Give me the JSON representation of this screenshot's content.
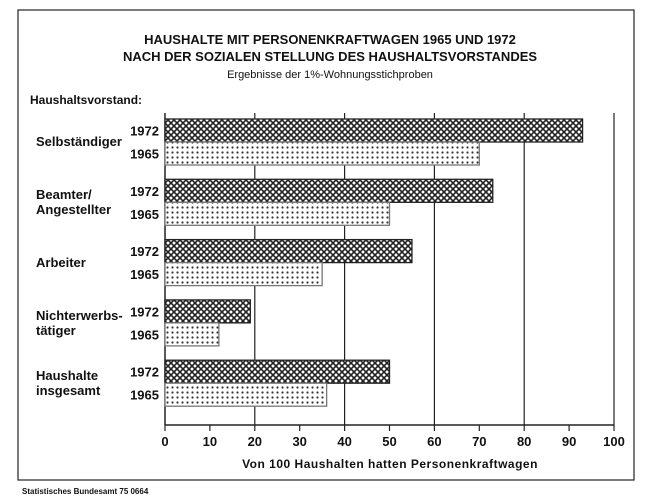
{
  "chart_data": {
    "type": "hbar",
    "title": "HAUSHALTE MIT PERSONENKRAFTWAGEN 1965 UND 1972",
    "title2": "NACH DER SOZIALEN STELLUNG DES HAUSHALTSVORSTANDES",
    "subtitle": "Ergebnisse der 1%-Wohnungsstichproben",
    "y_label": "Haushaltsvorstand:",
    "x_label": "Von 100 Haushalten hatten Personenkraftwagen",
    "source": "Statistisches Bundesamt 75 0664",
    "categories": [
      "Selbständiger",
      "Beamter/\nAngestellter",
      "Arbeiter",
      "Nichterwerbs-\ntätiger",
      "Haushalte\ninsgesamt"
    ],
    "series": [
      {
        "name": "1972",
        "color": "#222222",
        "values": [
          93,
          73,
          55,
          19,
          50
        ]
      },
      {
        "name": "1965",
        "color": "#777777",
        "values": [
          70,
          50,
          35,
          12,
          36
        ]
      }
    ],
    "xlim": [
      0,
      100
    ],
    "xticks": [
      0,
      10,
      20,
      30,
      40,
      50,
      60,
      70,
      80,
      90,
      100
    ]
  }
}
